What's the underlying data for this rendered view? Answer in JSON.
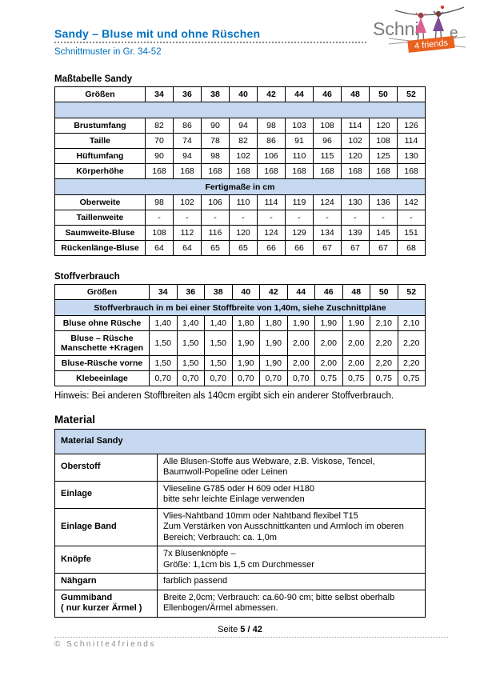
{
  "header": {
    "title": "Sandy – Bluse mit und ohne Rüschen",
    "subtitle": "Schnittmuster in Gr. 34-52",
    "logo": {
      "brand_left": "Schni",
      "brand_right": "e",
      "banner": "4 friends"
    }
  },
  "colors": {
    "accent_blue": "#0070C0",
    "band_blue": "#C6D9F0",
    "logo_orange": "#E8611F",
    "figure_pink": "#DF5F95",
    "figure_purple": "#7D4A96"
  },
  "mass_table": {
    "heading": "Maßtabelle Sandy",
    "sizes_label": "Größen",
    "sizes": [
      "34",
      "36",
      "38",
      "40",
      "42",
      "44",
      "46",
      "48",
      "50",
      "52"
    ],
    "measure_rows": [
      {
        "label": "Brustumfang",
        "values": [
          "82",
          "86",
          "90",
          "94",
          "98",
          "103",
          "108",
          "114",
          "120",
          "126"
        ]
      },
      {
        "label": "Taille",
        "values": [
          "70",
          "74",
          "78",
          "82",
          "86",
          "91",
          "96",
          "102",
          "108",
          "114"
        ]
      },
      {
        "label": "Hüftumfang",
        "values": [
          "90",
          "94",
          "98",
          "102",
          "106",
          "110",
          "115",
          "120",
          "125",
          "130"
        ]
      },
      {
        "label": "Körperhöhe",
        "values": [
          "168",
          "168",
          "168",
          "168",
          "168",
          "168",
          "168",
          "168",
          "168",
          "168"
        ]
      }
    ],
    "band_label": "Fertigmaße in cm",
    "finished_rows": [
      {
        "label": "Oberweite",
        "values": [
          "98",
          "102",
          "106",
          "110",
          "114",
          "119",
          "124",
          "130",
          "136",
          "142"
        ]
      },
      {
        "label": "Taillenweite",
        "values": [
          "-",
          "-",
          "-",
          "-",
          "-",
          "-",
          "-",
          "-",
          "-",
          "-"
        ]
      },
      {
        "label": "Saumweite-Bluse",
        "values": [
          "108",
          "112",
          "116",
          "120",
          "124",
          "129",
          "134",
          "139",
          "145",
          "151"
        ]
      },
      {
        "label": "Rückenlänge-Bluse",
        "values": [
          "64",
          "64",
          "65",
          "65",
          "66",
          "66",
          "67",
          "67",
          "67",
          "68"
        ]
      }
    ]
  },
  "fabric_table": {
    "heading": "Stoffverbrauch",
    "sizes_label": "Größen",
    "sizes": [
      "34",
      "36",
      "38",
      "40",
      "42",
      "44",
      "46",
      "48",
      "50",
      "52"
    ],
    "band_label": "Stoffverbrauch in m bei einer Stoffbreite von 1,40m, siehe Zuschnittpläne",
    "rows": [
      {
        "label": "Bluse ohne Rüsche",
        "values": [
          "1,40",
          "1,40",
          "1,40",
          "1,80",
          "1,80",
          "1,90",
          "1,90",
          "1,90",
          "2,10",
          "2,10"
        ]
      },
      {
        "label": "Bluse – Rüsche\nManschette +Kragen",
        "values": [
          "1,50",
          "1,50",
          "1,50",
          "1,90",
          "1,90",
          "2,00",
          "2,00",
          "2,00",
          "2,20",
          "2,20"
        ]
      },
      {
        "label": "Bluse-Rüsche vorne",
        "values": [
          "1,50",
          "1,50",
          "1,50",
          "1,90",
          "1,90",
          "2,00",
          "2,00",
          "2,00",
          "2,20",
          "2,20"
        ]
      },
      {
        "label": "Klebeeinlage",
        "values": [
          "0,70",
          "0,70",
          "0,70",
          "0,70",
          "0,70",
          "0,70",
          "0,75",
          "0,75",
          "0,75",
          "0,75"
        ]
      }
    ],
    "note": "Hinweis: Bei anderen Stoffbreiten als 140cm ergibt sich ein anderer Stoffverbrauch."
  },
  "material_table": {
    "heading": "Material",
    "header": "Material Sandy",
    "rows": [
      {
        "label": "Oberstoff",
        "text": "Alle Blusen-Stoffe aus Webware, z.B. Viskose, Tencel,\nBaumwoll-Popeline oder Leinen"
      },
      {
        "label": "Einlage",
        "text": "Vlieseline G785 oder H 609 oder H180\nbitte sehr leichte Einlage verwenden"
      },
      {
        "label": "Einlage Band",
        "text": "Vlies-Nahtband 10mm oder Nahtband flexibel T15\nZum Verstärken von Ausschnittkanten und Armloch im oberen Bereich; Verbrauch: ca. 1,0m"
      },
      {
        "label": "Knöpfe",
        "text": "7x Blusenknöpfe –\nGröße: 1,1cm bis 1,5 cm Durchmesser"
      },
      {
        "label": "Nähgarn",
        "text": "farblich passend"
      },
      {
        "label": "Gummiband\n( nur kurzer Ärmel )",
        "text": "Breite 2,0cm; Verbrauch: ca.60-90 cm; bitte selbst oberhalb Ellenbogen/Ärmel abmessen."
      }
    ]
  },
  "footer": {
    "page_label": "Seite ",
    "page_number": "5 / 42",
    "copyright": "© Schnitte4friends"
  }
}
